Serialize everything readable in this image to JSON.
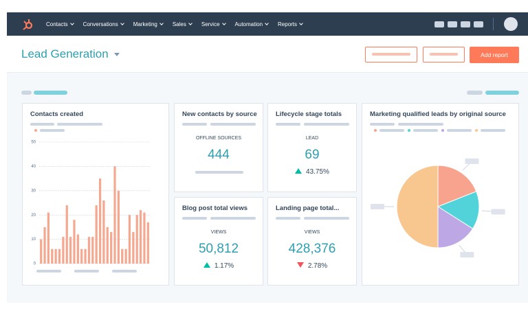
{
  "nav": {
    "items": [
      "Contacts",
      "Conversations",
      "Marketing",
      "Sales",
      "Service",
      "Automation",
      "Reports"
    ]
  },
  "header": {
    "title": "Lead Generation",
    "add_report": "Add report"
  },
  "widgets": {
    "contacts_created": {
      "title": "Contacts created",
      "type": "bar",
      "color": "#f5a88f",
      "ylim": [
        0,
        50
      ],
      "yticks": [
        0,
        10,
        20,
        30,
        40,
        50
      ],
      "grid": true,
      "values": [
        10,
        15,
        21,
        6,
        6,
        6,
        11,
        24,
        11,
        18,
        12,
        6,
        6,
        11,
        11,
        24,
        35,
        26,
        15,
        13,
        40,
        30,
        6,
        6,
        20,
        13,
        20,
        22,
        21,
        17
      ]
    },
    "new_contacts": {
      "title": "New contacts by source",
      "label": "OFFLINE SOURCES",
      "value": "444"
    },
    "lifecycle": {
      "title": "Lifecycle stage totals",
      "label": "LEAD",
      "value": "69",
      "change": "43.75%",
      "direction": "up"
    },
    "blog_views": {
      "title": "Blog post total views",
      "label": "VIEWS",
      "value": "50,812",
      "change": "1.17%",
      "direction": "up"
    },
    "landing_views": {
      "title": "Landing page total...",
      "label": "VIEWS",
      "value": "428,376",
      "change": "2.78%",
      "direction": "down"
    },
    "mql_by_source": {
      "title": "Marketing qualified leads by original source",
      "type": "pie",
      "values": [
        19,
        15,
        16,
        50
      ],
      "colors": [
        "#f8a38e",
        "#51d3d9",
        "#bea7e5",
        "#f7c78f"
      ]
    }
  }
}
